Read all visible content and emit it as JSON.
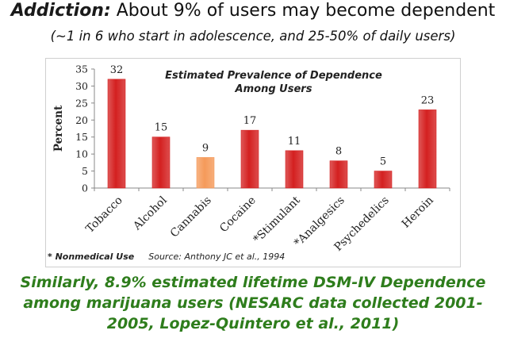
{
  "header": {
    "lead": "Addiction:",
    "rest": " About 9% of users may become dependent",
    "subtitle": "(~1 in 6 who start in adolescence, and 25-50% of daily users)"
  },
  "chart_data": {
    "type": "bar",
    "title_line1": "Estimated Prevalence of Dependence",
    "title_line2": "Among Users",
    "ylabel": "Percent",
    "xlabel": "",
    "ylim": [
      0,
      35
    ],
    "yticks": [
      0,
      5,
      10,
      15,
      20,
      25,
      30,
      35
    ],
    "categories": [
      "Tobacco",
      "Alcohol",
      "Cannabis",
      "Cocaine",
      "*Stimulant",
      "*Analgesics",
      "Psychedelics",
      "Heroin"
    ],
    "values": [
      32,
      15,
      9,
      17,
      11,
      8,
      5,
      23
    ],
    "colors": [
      "#d42020",
      "#d42020",
      "#f59a5a",
      "#d42020",
      "#d42020",
      "#d42020",
      "#d42020",
      "#d42020"
    ],
    "grid": false
  },
  "footnote": {
    "nonmedical": "* Nonmedical Use",
    "source": "Source: Anthony JC et al., 1994"
  },
  "bottom": {
    "text": "Similarly, 8.9% estimated lifetime DSM-IV Dependence among marijuana users (NESARC data collected 2001-2005, Lopez-Quintero et al., 2011)"
  }
}
